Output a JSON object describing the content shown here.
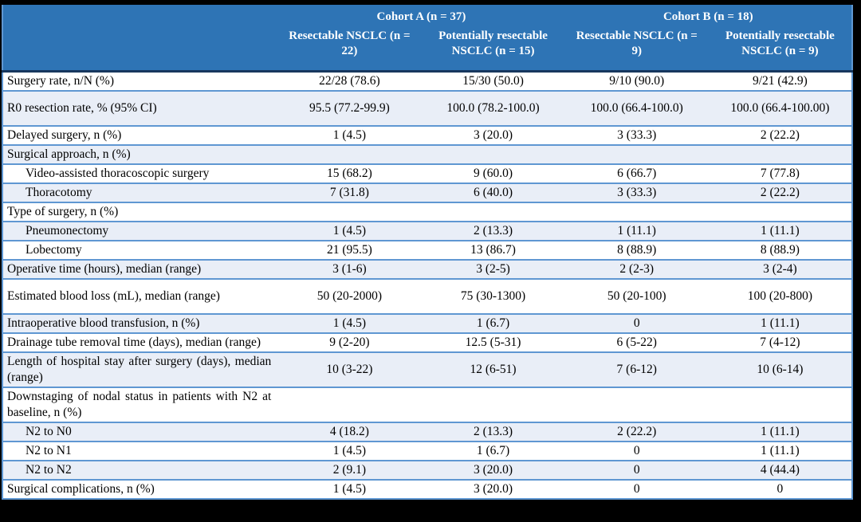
{
  "table": {
    "colors": {
      "header_bg": "#2E74B5",
      "header_text": "#FFFFFF",
      "row_alt": "#E9EEF7",
      "line": "#5F97D2",
      "header_rule": "#17375E",
      "frame": "#000000"
    },
    "header": {
      "corner": "",
      "cohort_a": "Cohort A (n = 37)",
      "cohort_b": "Cohort B (n = 18)",
      "columns": [
        "Resectable NSCLC (n = 22)",
        "Potentially resectable NSCLC (n = 15)",
        "Resectable NSCLC (n = 9)",
        "Potentially resectable NSCLC (n = 9)"
      ]
    },
    "rows": [
      {
        "label": "Surgery rate, n/N (%)",
        "indent": false,
        "tall": false,
        "values": [
          "22/28 (78.6)",
          "15/30 (50.0)",
          "9/10 (90.0)",
          "9/21 (42.9)"
        ]
      },
      {
        "label": "R0 resection rate, % (95% CI)",
        "indent": false,
        "tall": true,
        "values": [
          "95.5 (77.2-99.9)",
          "100.0 (78.2-100.0)",
          "100.0 (66.4-100.0)",
          "100.0 (66.4-100.00)"
        ]
      },
      {
        "label": "Delayed surgery, n (%)",
        "indent": false,
        "tall": false,
        "values": [
          "1 (4.5)",
          "3 (20.0)",
          "3 (33.3)",
          "2 (22.2)"
        ]
      },
      {
        "label": "Surgical approach, n (%)",
        "indent": false,
        "tall": false,
        "values": [
          "",
          "",
          "",
          ""
        ]
      },
      {
        "label": "Video-assisted thoracoscopic surgery",
        "indent": true,
        "tall": false,
        "values": [
          "15 (68.2)",
          "9 (60.0)",
          "6 (66.7)",
          "7 (77.8)"
        ]
      },
      {
        "label": "Thoracotomy",
        "indent": true,
        "tall": false,
        "values": [
          "7 (31.8)",
          "6 (40.0)",
          "3 (33.3)",
          "2 (22.2)"
        ]
      },
      {
        "label": "Type of surgery, n (%)",
        "indent": false,
        "tall": false,
        "values": [
          "",
          "",
          "",
          ""
        ]
      },
      {
        "label": "Pneumonectomy",
        "indent": true,
        "tall": false,
        "values": [
          "1 (4.5)",
          "2 (13.3)",
          "1 (11.1)",
          "1 (11.1)"
        ]
      },
      {
        "label": "Lobectomy",
        "indent": true,
        "tall": false,
        "values": [
          "21 (95.5)",
          "13 (86.7)",
          "8 (88.9)",
          "8 (88.9)"
        ]
      },
      {
        "label": "Operative time (hours), median (range)",
        "indent": false,
        "tall": false,
        "values": [
          "3 (1-6)",
          "3 (2-5)",
          "2 (2-3)",
          "3 (2-4)"
        ]
      },
      {
        "label": "Estimated blood loss (mL), median (range)",
        "indent": false,
        "tall": true,
        "values": [
          "50 (20-2000)",
          "75 (30-1300)",
          "50 (20-100)",
          "100 (20-800)"
        ]
      },
      {
        "label": "Intraoperative blood transfusion, n (%)",
        "indent": false,
        "tall": false,
        "values": [
          "1 (4.5)",
          "1 (6.7)",
          "0",
          "1 (11.1)"
        ]
      },
      {
        "label": "Drainage tube removal time (days), median (range)",
        "indent": false,
        "tall": false,
        "values": [
          "9 (2-20)",
          "12.5 (5-31)",
          "6 (5-22)",
          "7 (4-12)"
        ]
      },
      {
        "label": "Length of hospital stay after surgery (days), median (range)",
        "indent": false,
        "tall": false,
        "values": [
          "10 (3-22)",
          "12 (6-51)",
          "7 (6-12)",
          "10 (6-14)"
        ]
      },
      {
        "label": "Downstaging of nodal status in patients with N2 at baseline, n (%)",
        "indent": false,
        "tall": false,
        "values": [
          "",
          "",
          "",
          ""
        ]
      },
      {
        "label": "N2 to N0",
        "indent": true,
        "tall": false,
        "values": [
          "4 (18.2)",
          "2 (13.3)",
          "2 (22.2)",
          "1 (11.1)"
        ]
      },
      {
        "label": "N2 to N1",
        "indent": true,
        "tall": false,
        "values": [
          "1 (4.5)",
          "1 (6.7)",
          "0",
          "1 (11.1)"
        ]
      },
      {
        "label": "N2 to N2",
        "indent": true,
        "tall": false,
        "values": [
          "2 (9.1)",
          "3 (20.0)",
          "0",
          "4 (44.4)"
        ]
      },
      {
        "label": "Surgical complications, n (%)",
        "indent": false,
        "tall": false,
        "values": [
          "1 (4.5)",
          "3 (20.0)",
          "0",
          "0"
        ]
      }
    ]
  }
}
